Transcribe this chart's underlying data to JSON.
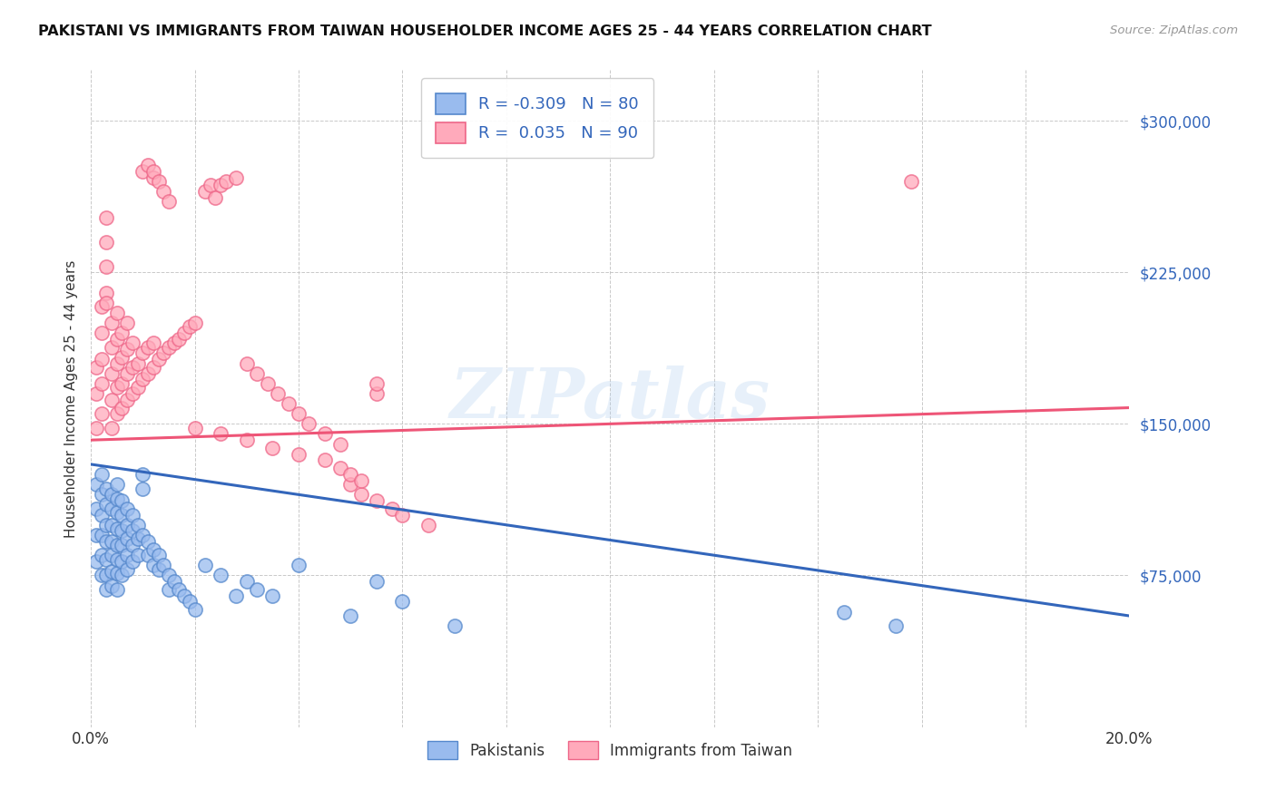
{
  "title": "PAKISTANI VS IMMIGRANTS FROM TAIWAN HOUSEHOLDER INCOME AGES 25 - 44 YEARS CORRELATION CHART",
  "source": "Source: ZipAtlas.com",
  "ylabel": "Householder Income Ages 25 - 44 years",
  "xlim": [
    0.0,
    0.2
  ],
  "ylim": [
    0,
    325000
  ],
  "yticks": [
    0,
    75000,
    150000,
    225000,
    300000
  ],
  "ytick_labels": [
    "",
    "$75,000",
    "$150,000",
    "$225,000",
    "$300,000"
  ],
  "background_color": "#ffffff",
  "watermark": "ZIPatlas",
  "legend_r_pakistani": "-0.309",
  "legend_n_pakistani": "80",
  "legend_r_taiwan": "0.035",
  "legend_n_taiwan": "90",
  "blue_scatter_color": "#99BBEE",
  "blue_edge_color": "#5588CC",
  "pink_scatter_color": "#FFAABB",
  "pink_edge_color": "#EE6688",
  "blue_line_color": "#3366BB",
  "pink_line_color": "#EE5577",
  "pakistani_x": [
    0.001,
    0.001,
    0.001,
    0.001,
    0.002,
    0.002,
    0.002,
    0.002,
    0.002,
    0.002,
    0.003,
    0.003,
    0.003,
    0.003,
    0.003,
    0.003,
    0.003,
    0.004,
    0.004,
    0.004,
    0.004,
    0.004,
    0.004,
    0.004,
    0.005,
    0.005,
    0.005,
    0.005,
    0.005,
    0.005,
    0.005,
    0.005,
    0.006,
    0.006,
    0.006,
    0.006,
    0.006,
    0.006,
    0.007,
    0.007,
    0.007,
    0.007,
    0.007,
    0.008,
    0.008,
    0.008,
    0.008,
    0.009,
    0.009,
    0.009,
    0.01,
    0.01,
    0.01,
    0.011,
    0.011,
    0.012,
    0.012,
    0.013,
    0.013,
    0.014,
    0.015,
    0.015,
    0.016,
    0.017,
    0.018,
    0.019,
    0.02,
    0.022,
    0.025,
    0.028,
    0.03,
    0.032,
    0.035,
    0.04,
    0.05,
    0.055,
    0.06,
    0.07,
    0.145,
    0.155
  ],
  "pakistani_y": [
    120000,
    108000,
    95000,
    82000,
    125000,
    115000,
    105000,
    95000,
    85000,
    75000,
    118000,
    110000,
    100000,
    92000,
    83000,
    75000,
    68000,
    115000,
    108000,
    100000,
    92000,
    85000,
    77000,
    70000,
    120000,
    113000,
    106000,
    98000,
    90000,
    83000,
    76000,
    68000,
    112000,
    105000,
    97000,
    90000,
    82000,
    75000,
    108000,
    100000,
    93000,
    85000,
    78000,
    105000,
    97000,
    90000,
    82000,
    100000,
    93000,
    85000,
    125000,
    118000,
    95000,
    92000,
    85000,
    88000,
    80000,
    85000,
    78000,
    80000,
    75000,
    68000,
    72000,
    68000,
    65000,
    62000,
    58000,
    80000,
    75000,
    65000,
    72000,
    68000,
    65000,
    80000,
    55000,
    72000,
    62000,
    50000,
    57000,
    50000
  ],
  "taiwan_x": [
    0.001,
    0.001,
    0.001,
    0.002,
    0.002,
    0.002,
    0.002,
    0.002,
    0.003,
    0.003,
    0.003,
    0.003,
    0.003,
    0.004,
    0.004,
    0.004,
    0.004,
    0.004,
    0.005,
    0.005,
    0.005,
    0.005,
    0.005,
    0.006,
    0.006,
    0.006,
    0.006,
    0.007,
    0.007,
    0.007,
    0.007,
    0.008,
    0.008,
    0.008,
    0.009,
    0.009,
    0.01,
    0.01,
    0.011,
    0.011,
    0.012,
    0.012,
    0.013,
    0.014,
    0.015,
    0.016,
    0.017,
    0.018,
    0.019,
    0.02,
    0.022,
    0.023,
    0.024,
    0.025,
    0.026,
    0.028,
    0.03,
    0.032,
    0.034,
    0.036,
    0.038,
    0.04,
    0.042,
    0.045,
    0.048,
    0.05,
    0.052,
    0.055,
    0.058,
    0.06,
    0.065,
    0.01,
    0.011,
    0.012,
    0.012,
    0.013,
    0.014,
    0.015,
    0.055,
    0.055,
    0.02,
    0.025,
    0.03,
    0.035,
    0.04,
    0.045,
    0.048,
    0.05,
    0.052,
    0.158
  ],
  "taiwan_y": [
    148000,
    165000,
    178000,
    155000,
    170000,
    182000,
    195000,
    208000,
    215000,
    228000,
    240000,
    252000,
    210000,
    148000,
    162000,
    175000,
    188000,
    200000,
    155000,
    168000,
    180000,
    192000,
    205000,
    158000,
    170000,
    183000,
    195000,
    162000,
    175000,
    187000,
    200000,
    165000,
    178000,
    190000,
    168000,
    180000,
    172000,
    185000,
    175000,
    188000,
    178000,
    190000,
    182000,
    185000,
    188000,
    190000,
    192000,
    195000,
    198000,
    200000,
    265000,
    268000,
    262000,
    268000,
    270000,
    272000,
    180000,
    175000,
    170000,
    165000,
    160000,
    155000,
    150000,
    145000,
    140000,
    120000,
    115000,
    112000,
    108000,
    105000,
    100000,
    275000,
    278000,
    272000,
    275000,
    270000,
    265000,
    260000,
    165000,
    170000,
    148000,
    145000,
    142000,
    138000,
    135000,
    132000,
    128000,
    125000,
    122000,
    270000
  ]
}
